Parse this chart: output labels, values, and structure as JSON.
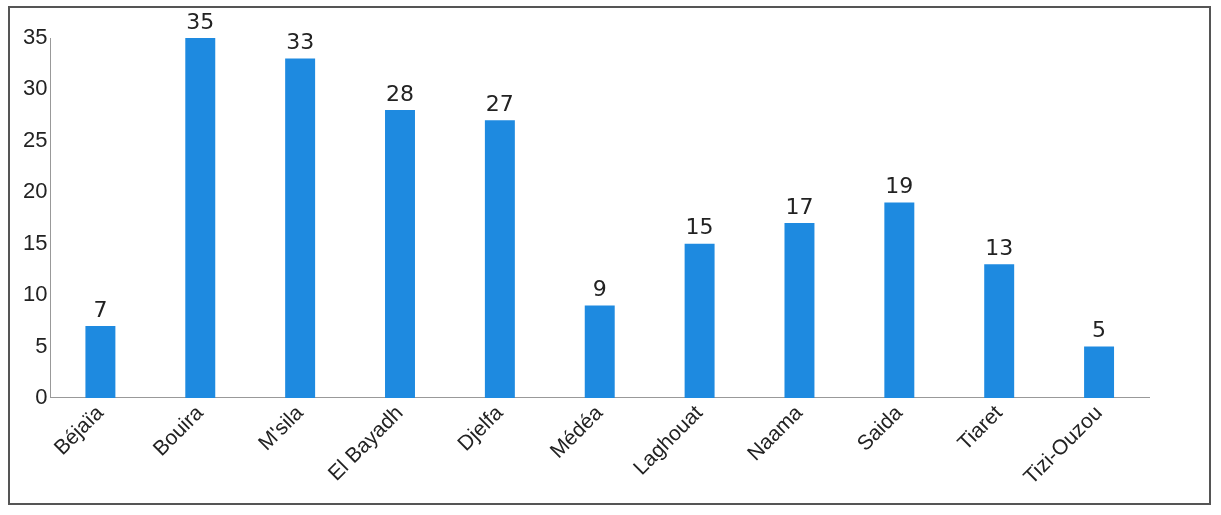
{
  "chart_data": {
    "type": "bar",
    "categories": [
      "Béjaïa",
      "Bouira",
      "M'sila",
      "El Bayadh",
      "Djelfa",
      "Médéa",
      "Laghouat",
      "Naama",
      "Saida",
      "Tiaret",
      "Tizi-Ouzou"
    ],
    "values": [
      7,
      35,
      33,
      28,
      27,
      9,
      15,
      17,
      19,
      13,
      5
    ],
    "color": "#1e8ae0",
    "ylim": [
      0,
      35
    ],
    "yticks": [
      0,
      5,
      10,
      15,
      20,
      25,
      30,
      35
    ],
    "grid": false,
    "legend": false,
    "data_labels": true
  }
}
